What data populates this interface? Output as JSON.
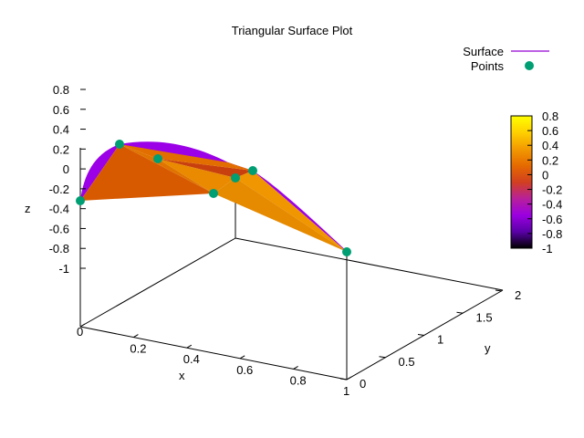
{
  "chart_data": {
    "type": "surface3d",
    "title": "Triangular Surface Plot",
    "xlabel": "x",
    "ylabel": "y",
    "zlabel": "z",
    "xlim": [
      0,
      1
    ],
    "ylim": [
      0,
      2
    ],
    "zlim": [
      -1,
      0.8
    ],
    "x_ticks": [
      "0",
      "0.2",
      "0.4",
      "0.6",
      "0.8",
      "1"
    ],
    "y_ticks": [
      "0",
      "0.5",
      "1",
      "1.5",
      "2"
    ],
    "z_ticks": [
      "0.8",
      "0.6",
      "0.4",
      "0.2",
      "0",
      "-0.2",
      "-0.4",
      "-0.6",
      "-0.8",
      "-1"
    ],
    "colorbar": {
      "range": [
        -1,
        0.8
      ],
      "ticks": [
        "0.8",
        "0.6",
        "0.4",
        "0.2",
        "0",
        "-0.2",
        "-0.4",
        "-0.6",
        "-0.8",
        "-1"
      ],
      "palette": [
        "#000000",
        "#5a00a8",
        "#9b00e0",
        "#b8209a",
        "#d2401f",
        "#e56a00",
        "#f39a00",
        "#ffd000",
        "#ffff00"
      ]
    },
    "legend": {
      "placement": "top-right",
      "entries": [
        {
          "label": "Surface",
          "style": "line",
          "color": "#9400d3"
        },
        {
          "label": "Points",
          "style": "point",
          "color": "#009e73"
        }
      ]
    },
    "series": [
      {
        "name": "Points",
        "color": "#009e73",
        "points": [
          {
            "x": 0.0,
            "y": 0.0,
            "z": 0.0
          },
          {
            "x": 0.0,
            "y": 0.7,
            "z": 0.82
          },
          {
            "x": 0.3,
            "y": 0.8,
            "z": 0.58
          },
          {
            "x": 0.0,
            "y": 1.55,
            "z": 0.52
          },
          {
            "x": 0.65,
            "y": 0.1,
            "z": 0.1
          },
          {
            "x": 0.38,
            "y": 1.25,
            "z": 0.42
          },
          {
            "x": 1.0,
            "y": 0.0,
            "z": 0.0
          }
        ]
      }
    ]
  }
}
